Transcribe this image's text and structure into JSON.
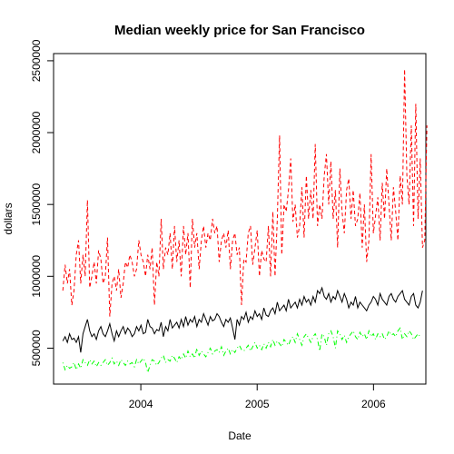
{
  "chart_data": {
    "type": "line",
    "title": "Median weekly price for San Francisco",
    "xlabel": "Date",
    "ylabel": "dollars",
    "xlim": [
      2003.25,
      2006.45
    ],
    "ylim": [
      250000,
      2550000
    ],
    "x_ticks": [
      {
        "value": 2004,
        "label": "2004"
      },
      {
        "value": 2005,
        "label": "2005"
      },
      {
        "value": 2006,
        "label": "2006"
      }
    ],
    "y_ticks": [
      {
        "value": 500000,
        "label": "500000"
      },
      {
        "value": 1000000,
        "label": "1000000"
      },
      {
        "value": 1500000,
        "label": "1500000"
      },
      {
        "value": 2000000,
        "label": "2000000"
      },
      {
        "value": 2500000,
        "label": "2500000"
      }
    ],
    "grid": false,
    "series": [
      {
        "name": "upper (red dashed)",
        "color": "#FF0000",
        "dash": "dashed",
        "x_start": 2003.33,
        "x_step": 0.0192,
        "values": [
          900000,
          1080000,
          950000,
          1050000,
          800000,
          900000,
          1150000,
          1250000,
          950000,
          1150000,
          1000000,
          1530000,
          920000,
          1000000,
          1100000,
          950000,
          1180000,
          1120000,
          950000,
          1000000,
          1270000,
          720000,
          950000,
          1000000,
          900000,
          1050000,
          850000,
          950000,
          1100000,
          1060000,
          1150000,
          1100000,
          1000000,
          1050000,
          1250000,
          1150000,
          1100000,
          1000000,
          1150000,
          1050000,
          1200000,
          800000,
          1100000,
          1000000,
          1400000,
          1050000,
          1200000,
          1150000,
          1300000,
          1050000,
          1350000,
          1100000,
          1250000,
          1000000,
          1350000,
          1150000,
          1300000,
          920000,
          1400000,
          1200000,
          1300000,
          1050000,
          1250000,
          1350000,
          1200000,
          1300000,
          1250000,
          1400000,
          1300000,
          1350000,
          1100000,
          1250000,
          1300000,
          1200000,
          1320000,
          1050000,
          1250000,
          1300000,
          1150000,
          1200000,
          800000,
          1120000,
          1100000,
          1300000,
          1350000,
          1080000,
          1200000,
          1320000,
          1000000,
          1180000,
          1120000,
          1100000,
          1350000,
          1000000,
          1450000,
          1000000,
          1400000,
          1980000,
          1150000,
          1500000,
          1450000,
          1600000,
          1820000,
          1380000,
          1500000,
          1270000,
          1350000,
          1620000,
          1270000,
          1700000,
          1400000,
          1600000,
          1400000,
          1920000,
          1350000,
          1500000,
          1400000,
          1700000,
          1850000,
          1500000,
          1800000,
          1400000,
          1600000,
          1200000,
          1750000,
          1450000,
          1300000,
          1600000,
          1680000,
          1400000,
          1600000,
          1350000,
          1400000,
          1580000,
          1200000,
          1500000,
          1100000,
          1250000,
          1850000,
          1300000,
          1420000,
          1550000,
          1250000,
          1650000,
          1400000,
          1750000,
          1500000,
          1250000,
          1620000,
          1450000,
          1250000,
          1700000,
          1500000,
          2440000,
          1700000,
          1500000,
          2050000,
          1350000,
          2200000,
          1400000,
          1820000,
          1200000,
          1250000,
          2050000
        ]
      },
      {
        "name": "middle (black solid)",
        "color": "#000000",
        "dash": "solid",
        "x_start": 2003.33,
        "x_step": 0.0192,
        "values": [
          550000,
          580000,
          540000,
          600000,
          560000,
          570000,
          540000,
          580000,
          470000,
          600000,
          650000,
          700000,
          620000,
          580000,
          600000,
          560000,
          620000,
          650000,
          600000,
          580000,
          620000,
          670000,
          600000,
          550000,
          620000,
          580000,
          620000,
          650000,
          600000,
          640000,
          620000,
          580000,
          600000,
          650000,
          620000,
          660000,
          600000,
          610000,
          700000,
          650000,
          640000,
          600000,
          630000,
          620000,
          680000,
          580000,
          650000,
          620000,
          700000,
          640000,
          660000,
          680000,
          640000,
          700000,
          650000,
          720000,
          660000,
          700000,
          680000,
          720000,
          650000,
          700000,
          680000,
          740000,
          700000,
          660000,
          720000,
          690000,
          700000,
          740000,
          720000,
          680000,
          650000,
          700000,
          680000,
          710000,
          640000,
          560000,
          700000,
          660000,
          720000,
          700000,
          750000,
          680000,
          720000,
          700000,
          760000,
          720000,
          740000,
          700000,
          780000,
          730000,
          720000,
          760000,
          780000,
          740000,
          820000,
          760000,
          780000,
          800000,
          760000,
          840000,
          780000,
          800000,
          820000,
          780000,
          840000,
          800000,
          860000,
          820000,
          840000,
          800000,
          860000,
          820000,
          900000,
          880000,
          920000,
          860000,
          840000,
          880000,
          820000,
          860000,
          840000,
          900000,
          860000,
          820000,
          880000,
          840000,
          780000,
          820000,
          800000,
          860000,
          780000,
          820000,
          800000,
          780000,
          760000,
          800000,
          820000,
          860000,
          840000,
          800000,
          880000,
          840000,
          820000,
          800000,
          860000,
          880000,
          840000,
          820000,
          860000,
          880000,
          900000,
          840000,
          820000,
          800000,
          860000,
          880000,
          800000,
          780000,
          820000,
          900000
        ]
      },
      {
        "name": "lower (green dash-dot)",
        "color": "#00FF00",
        "dash": "dotdash",
        "x_start": 2003.33,
        "x_step": 0.0192,
        "values": [
          400000,
          350000,
          380000,
          360000,
          370000,
          400000,
          350000,
          390000,
          360000,
          420000,
          400000,
          380000,
          420000,
          390000,
          410000,
          370000,
          400000,
          380000,
          400000,
          420000,
          380000,
          400000,
          430000,
          390000,
          410000,
          380000,
          420000,
          400000,
          380000,
          410000,
          390000,
          400000,
          370000,
          420000,
          390000,
          410000,
          430000,
          400000,
          330000,
          380000,
          420000,
          410000,
          380000,
          400000,
          430000,
          450000,
          400000,
          420000,
          410000,
          450000,
          430000,
          400000,
          440000,
          420000,
          460000,
          430000,
          480000,
          440000,
          460000,
          430000,
          500000,
          450000,
          480000,
          460000,
          440000,
          470000,
          500000,
          460000,
          480000,
          490000,
          470000,
          510000,
          450000,
          480000,
          500000,
          460000,
          490000,
          470000,
          500000,
          520000,
          490000,
          480000,
          500000,
          520000,
          480000,
          510000,
          540000,
          500000,
          520000,
          490000,
          530000,
          500000,
          540000,
          510000,
          560000,
          520000,
          550000,
          530000,
          510000,
          560000,
          540000,
          520000,
          560000,
          580000,
          540000,
          600000,
          560000,
          520000,
          580000,
          600000,
          570000,
          540000,
          580000,
          600000,
          560000,
          480000,
          600000,
          580000,
          520000,
          600000,
          620000,
          580000,
          500000,
          620000,
          600000,
          560000,
          590000,
          540000,
          580000,
          600000,
          620000,
          580000,
          560000,
          610000,
          580000,
          600000,
          560000,
          620000,
          580000,
          600000,
          560000,
          600000,
          580000,
          600000,
          560000,
          580000,
          620000,
          590000,
          600000,
          580000,
          620000,
          640000,
          560000,
          600000,
          580000,
          620000,
          600000,
          560000,
          580000,
          600000,
          580000
        ]
      }
    ]
  }
}
